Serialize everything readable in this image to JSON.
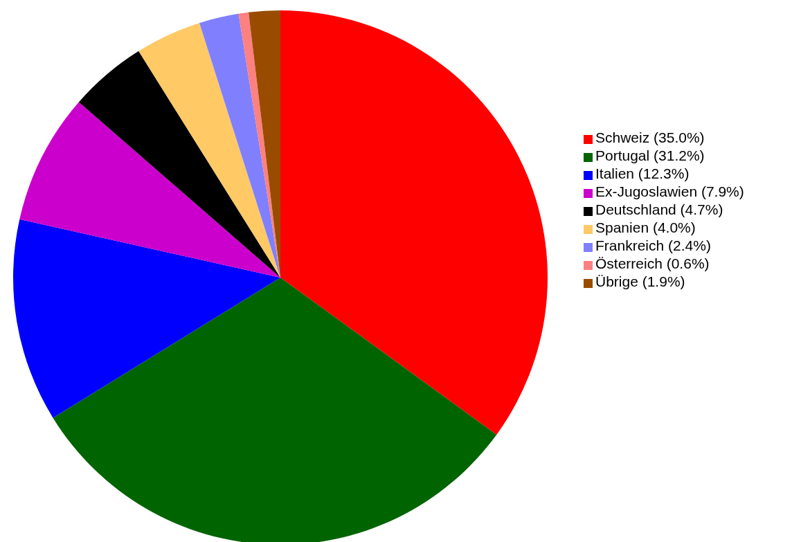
{
  "chart_data": {
    "type": "pie",
    "categories": [
      "Schweiz (35.0%)",
      "Portugal (31.2%)",
      "Italien (12.3%)",
      "Ex-Jugoslawien (7.9%)",
      "Deutschland (4.7%)",
      "Spanien (4.0%)",
      "Frankreich (2.4%)",
      "Österreich (0.6%)",
      "Übrige (1.9%)"
    ],
    "values": [
      35.0,
      31.2,
      12.3,
      7.9,
      4.7,
      4.0,
      2.4,
      0.6,
      1.9
    ],
    "colors": [
      "#ff0000",
      "#006400",
      "#0000ff",
      "#cc00cc",
      "#000000",
      "#ffc966",
      "#8080ff",
      "#ff8080",
      "#994c00"
    ],
    "legend": "right"
  }
}
